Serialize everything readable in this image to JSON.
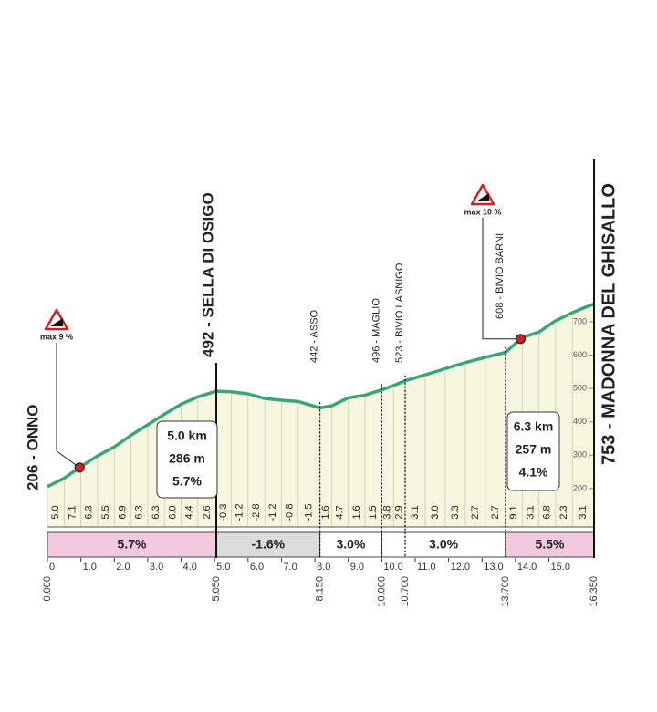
{
  "chart_data": {
    "type": "line",
    "x": [
      0,
      0.5,
      1,
      1.5,
      2,
      2.5,
      3,
      3.5,
      4,
      4.5,
      5.05,
      5.5,
      6,
      6.5,
      7,
      7.5,
      8.15,
      8.5,
      9,
      9.5,
      10,
      10.35,
      10.7,
      11.2,
      11.7,
      12.2,
      12.7,
      13.2,
      13.7,
      14.2,
      14.7,
      15.2,
      15.7,
      16,
      16.35
    ],
    "values": [
      206,
      231,
      266,
      298,
      325,
      360,
      391,
      423,
      453,
      475,
      492,
      490,
      484,
      470,
      465,
      461,
      442,
      448,
      472,
      480,
      496,
      509,
      523,
      538,
      553,
      569,
      583,
      596,
      608,
      653,
      669,
      703,
      727,
      740,
      753
    ],
    "color": "#3aa57a",
    "fill": "#f5f8df",
    "xlim": [
      0,
      16.35
    ],
    "ylim": [
      85,
      1200
    ],
    "xticks": [
      0,
      {
        "value": 1,
        "label": "1.0"
      },
      {
        "value": 2,
        "label": "2.0"
      },
      {
        "value": 3,
        "label": "3.0"
      },
      {
        "value": 4,
        "label": "4.0"
      },
      {
        "value": 5,
        "label": "5.0"
      },
      {
        "value": 6,
        "label": "6.0"
      },
      {
        "value": 7,
        "label": "7.0"
      },
      {
        "value": 8,
        "label": "8.0"
      },
      {
        "value": 9,
        "label": "9.0"
      },
      {
        "value": 10,
        "label": "10.0"
      },
      {
        "value": 11,
        "label": "11.0"
      },
      {
        "value": 12,
        "label": "12.0"
      },
      {
        "value": 13,
        "label": "13.0"
      },
      {
        "value": 14,
        "label": "14.0"
      },
      {
        "value": 15,
        "label": "15.0"
      }
    ],
    "yticks": [
      200,
      300,
      400,
      500,
      600,
      700
    ],
    "waypoints": [
      {
        "km": 0,
        "km_label": "0.000",
        "label": "206 - ONNO",
        "major": true
      },
      {
        "km": 5.05,
        "km_label": "5.050",
        "label": "492 - SELLA DI OSIGO",
        "major": true
      },
      {
        "km": 8.15,
        "km_label": "8.150",
        "label": "442 - ASSO",
        "major": false
      },
      {
        "km": 10,
        "km_label": "10.000",
        "label": "496 - MAGLIO",
        "major": false
      },
      {
        "km": 10.7,
        "km_label": "10.700",
        "label": "523 - BIVIO LASNIGO",
        "major": false
      },
      {
        "km": 13.7,
        "km_label": "13.700",
        "label": "608 - BIVIO BARNI",
        "major": false
      },
      {
        "km": 16.35,
        "km_label": "16.350",
        "label": "753 - MADONNA DEL GHISALLO",
        "major": true
      }
    ],
    "gradients": {
      "from": [
        0,
        0.5,
        1,
        1.5,
        2,
        2.5,
        3,
        3.5,
        4,
        4.5,
        5.05,
        5.5,
        6,
        6.5,
        7,
        7.5,
        8.15,
        8.5,
        9,
        9.5,
        10,
        10.35,
        10.7,
        11.3,
        11.9,
        12.5,
        13.1,
        13.7,
        14.2,
        14.7,
        15.2,
        15.7
      ],
      "values": [
        5,
        7.1,
        6.3,
        5.5,
        6.9,
        6.3,
        6.3,
        6,
        4.4,
        2.6,
        -0.3,
        -1.2,
        -2.8,
        -1.2,
        -0.8,
        -1.5,
        1.6,
        4.7,
        1.6,
        1.5,
        3.8,
        2.9,
        3.1,
        3,
        3.3,
        2.7,
        2.7,
        9.1,
        3.1,
        6.8,
        2.3,
        3.1
      ],
      "value_labels": [
        "5.0",
        "7.1",
        "6.3",
        "5.5",
        "6.9",
        "6.3",
        "6.3",
        "6.0",
        "4.4",
        "2.6",
        "-0.3",
        "-1.2",
        "-2.8",
        "-1.2",
        "-0.8",
        "-1.5",
        "1.6",
        "4.7",
        "1.6",
        "1.5",
        "3.8",
        "2.9",
        "3.1",
        "3.0",
        "3.3",
        "2.7",
        "2.7",
        "9.1",
        "3.1",
        "6.8",
        "2.3",
        "3.1"
      ]
    },
    "sections": [
      {
        "from": 0,
        "to": 5.05,
        "value": 5.7,
        "label": "5.7%",
        "color": "#f2c9de"
      },
      {
        "from": 5.05,
        "to": 8.15,
        "value": -1.6,
        "label": "-1.6%",
        "color": "#dcdcdc"
      },
      {
        "from": 8.15,
        "to": 10,
        "value": 3,
        "label": "3.0%",
        "color": "#ffffff"
      },
      {
        "from": 10,
        "to": 13.7,
        "value": 3,
        "label": "3.0%",
        "color": "#ffffff"
      },
      {
        "from": 13.7,
        "to": 16.35,
        "value": 5.5,
        "label": "5.5%",
        "color": "#f2c9de"
      }
    ],
    "boxes": [
      {
        "lines": [
          "5.0 km",
          "286 m",
          "5.7%"
        ]
      },
      {
        "lines": [
          "6.3 km",
          "257 m",
          "4.1%"
        ]
      }
    ],
    "max_markers": [
      {
        "label": "max 9 %",
        "km": 0.96
      },
      {
        "label": "max 10 %",
        "km": 14.15
      }
    ]
  }
}
